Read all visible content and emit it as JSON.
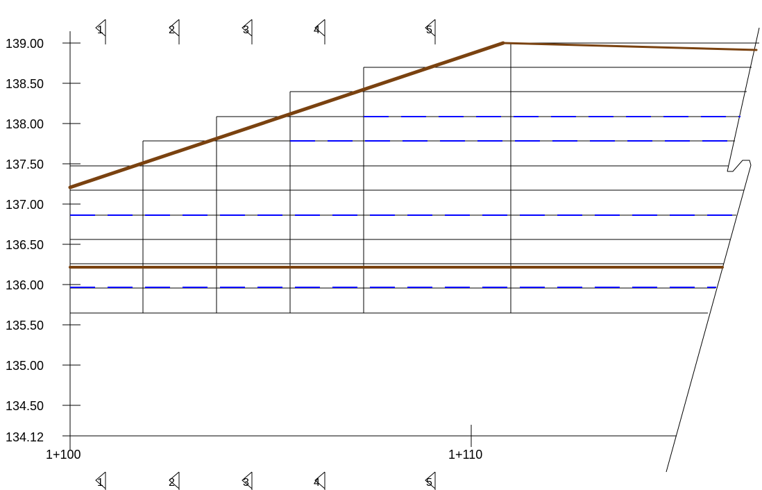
{
  "y_axis_labels": [
    "139.00",
    "138.50",
    "138.00",
    "137.50",
    "137.00",
    "136.50",
    "136.00",
    "135.50",
    "135.00",
    "134.50",
    "134.12"
  ],
  "chainage_labels": [
    "1+100",
    "1+110"
  ],
  "section_markers_top": [
    "1",
    "2",
    "3",
    "4",
    "5"
  ],
  "section_markers_bottom": [
    "1",
    "2",
    "3",
    "4",
    "5"
  ],
  "colors": {
    "ground_line": "#7a4210",
    "water_line": "#0000ff",
    "grid": "#000000"
  }
}
